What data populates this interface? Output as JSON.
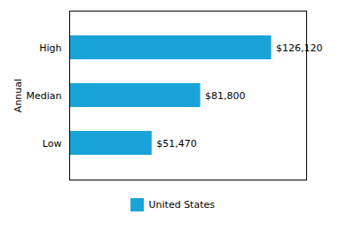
{
  "chart_data": {
    "type": "bar",
    "orientation": "horizontal",
    "categories": [
      "Low",
      "Median",
      "High"
    ],
    "series": [
      {
        "name": "United States",
        "color": "#1aa3d9",
        "values": [
          51470,
          81800,
          126120
        ],
        "value_labels": [
          "$51,470",
          "$81,800",
          "$126,120"
        ]
      }
    ],
    "ylabel": "Annual",
    "xlim": [
      0,
      148000
    ],
    "tick_labels": "y",
    "data_labels": true,
    "legend": "bottom"
  }
}
